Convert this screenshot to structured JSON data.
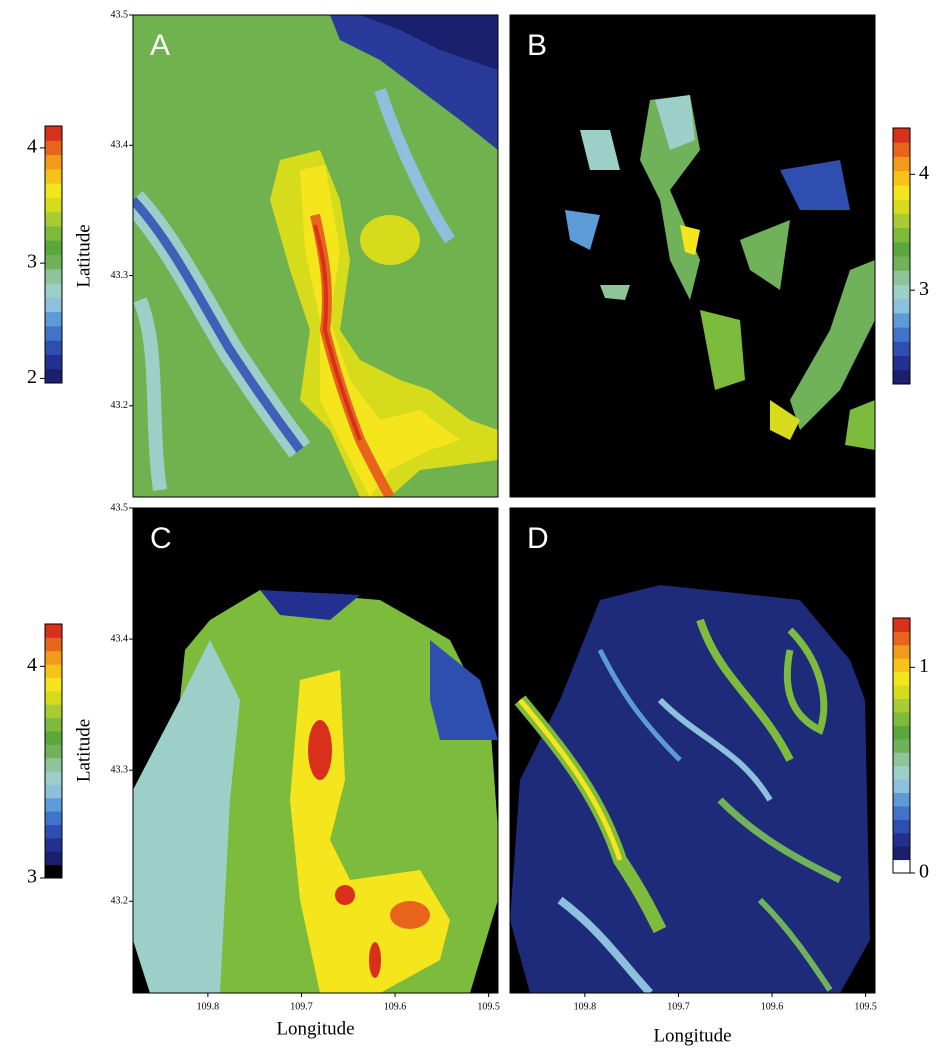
{
  "chart_data": [
    {
      "type": "map",
      "label": "A",
      "ylabel": "Latitude",
      "xlim": [
        109.88,
        109.49
      ],
      "ylim": [
        43.13,
        43.5
      ],
      "yticks": [
        43.5,
        43.4,
        43.3,
        43.2
      ],
      "colorbar": {
        "side": "left",
        "lim": [
          1.96,
          4.19
        ],
        "ticks": [
          2,
          3,
          4
        ],
        "colors": [
          "#1a1f6e",
          "#23308f",
          "#2f4fb0",
          "#3f74c8",
          "#5d9ad8",
          "#8cc0dc",
          "#9ccfc8",
          "#8fc39a",
          "#6fb25a",
          "#5aa83c",
          "#7dbb3c",
          "#a8cc32",
          "#d6dc1c",
          "#f5e51c",
          "#f7c31a",
          "#f29a1a",
          "#e8641c",
          "#d9301c"
        ]
      }
    },
    {
      "type": "map",
      "label": "B",
      "xlim": [
        109.88,
        109.49
      ],
      "ylim": [
        43.13,
        43.5
      ],
      "colorbar": {
        "side": "right",
        "lim": [
          2.19,
          4.4
        ],
        "ticks": [
          3,
          4
        ],
        "colors": [
          "#1a1f6e",
          "#23308f",
          "#2f4fb0",
          "#3f74c8",
          "#5d9ad8",
          "#8cc0dc",
          "#9ccfc8",
          "#8fc39a",
          "#6fb25a",
          "#5aa83c",
          "#7dbb3c",
          "#a8cc32",
          "#d6dc1c",
          "#f5e51c",
          "#f7c31a",
          "#f29a1a",
          "#e8641c",
          "#d9301c"
        ]
      }
    },
    {
      "type": "map",
      "label": "C",
      "ylabel": "Latitude",
      "xlabel": "Longitude",
      "xlim": [
        109.88,
        109.49
      ],
      "ylim": [
        43.13,
        43.5
      ],
      "yticks": [
        43.5,
        43.4,
        43.3,
        43.2
      ],
      "xticks": [
        109.8,
        109.7,
        109.6,
        109.5
      ],
      "colorbar": {
        "side": "left",
        "lim": [
          3.0,
          4.2
        ],
        "ticks": [
          3,
          4
        ],
        "colors": [
          "#000000",
          "#1a1f6e",
          "#23308f",
          "#2f4fb0",
          "#3f74c8",
          "#5d9ad8",
          "#8cc0dc",
          "#9ccfc8",
          "#8fc39a",
          "#6fb25a",
          "#5aa83c",
          "#7dbb3c",
          "#a8cc32",
          "#d6dc1c",
          "#f5e51c",
          "#f7c31a",
          "#f29a1a",
          "#e8641c",
          "#d9301c"
        ]
      }
    },
    {
      "type": "map",
      "label": "D",
      "xlabel": "Longitude",
      "xlim": [
        109.88,
        109.49
      ],
      "ylim": [
        43.13,
        43.5
      ],
      "xticks": [
        109.8,
        109.7,
        109.6,
        109.5
      ],
      "colorbar": {
        "side": "right",
        "lim": [
          0,
          1.24
        ],
        "ticks": [
          0,
          1
        ],
        "colors": [
          "#ffffff",
          "#1a1f6e",
          "#23308f",
          "#2f4fb0",
          "#3f74c8",
          "#5d9ad8",
          "#8cc0dc",
          "#9ccfc8",
          "#8fc39a",
          "#6fb25a",
          "#5aa83c",
          "#7dbb3c",
          "#a8cc32",
          "#d6dc1c",
          "#f5e51c",
          "#f7c31a",
          "#f29a1a",
          "#e8641c",
          "#d9301c"
        ]
      }
    }
  ]
}
